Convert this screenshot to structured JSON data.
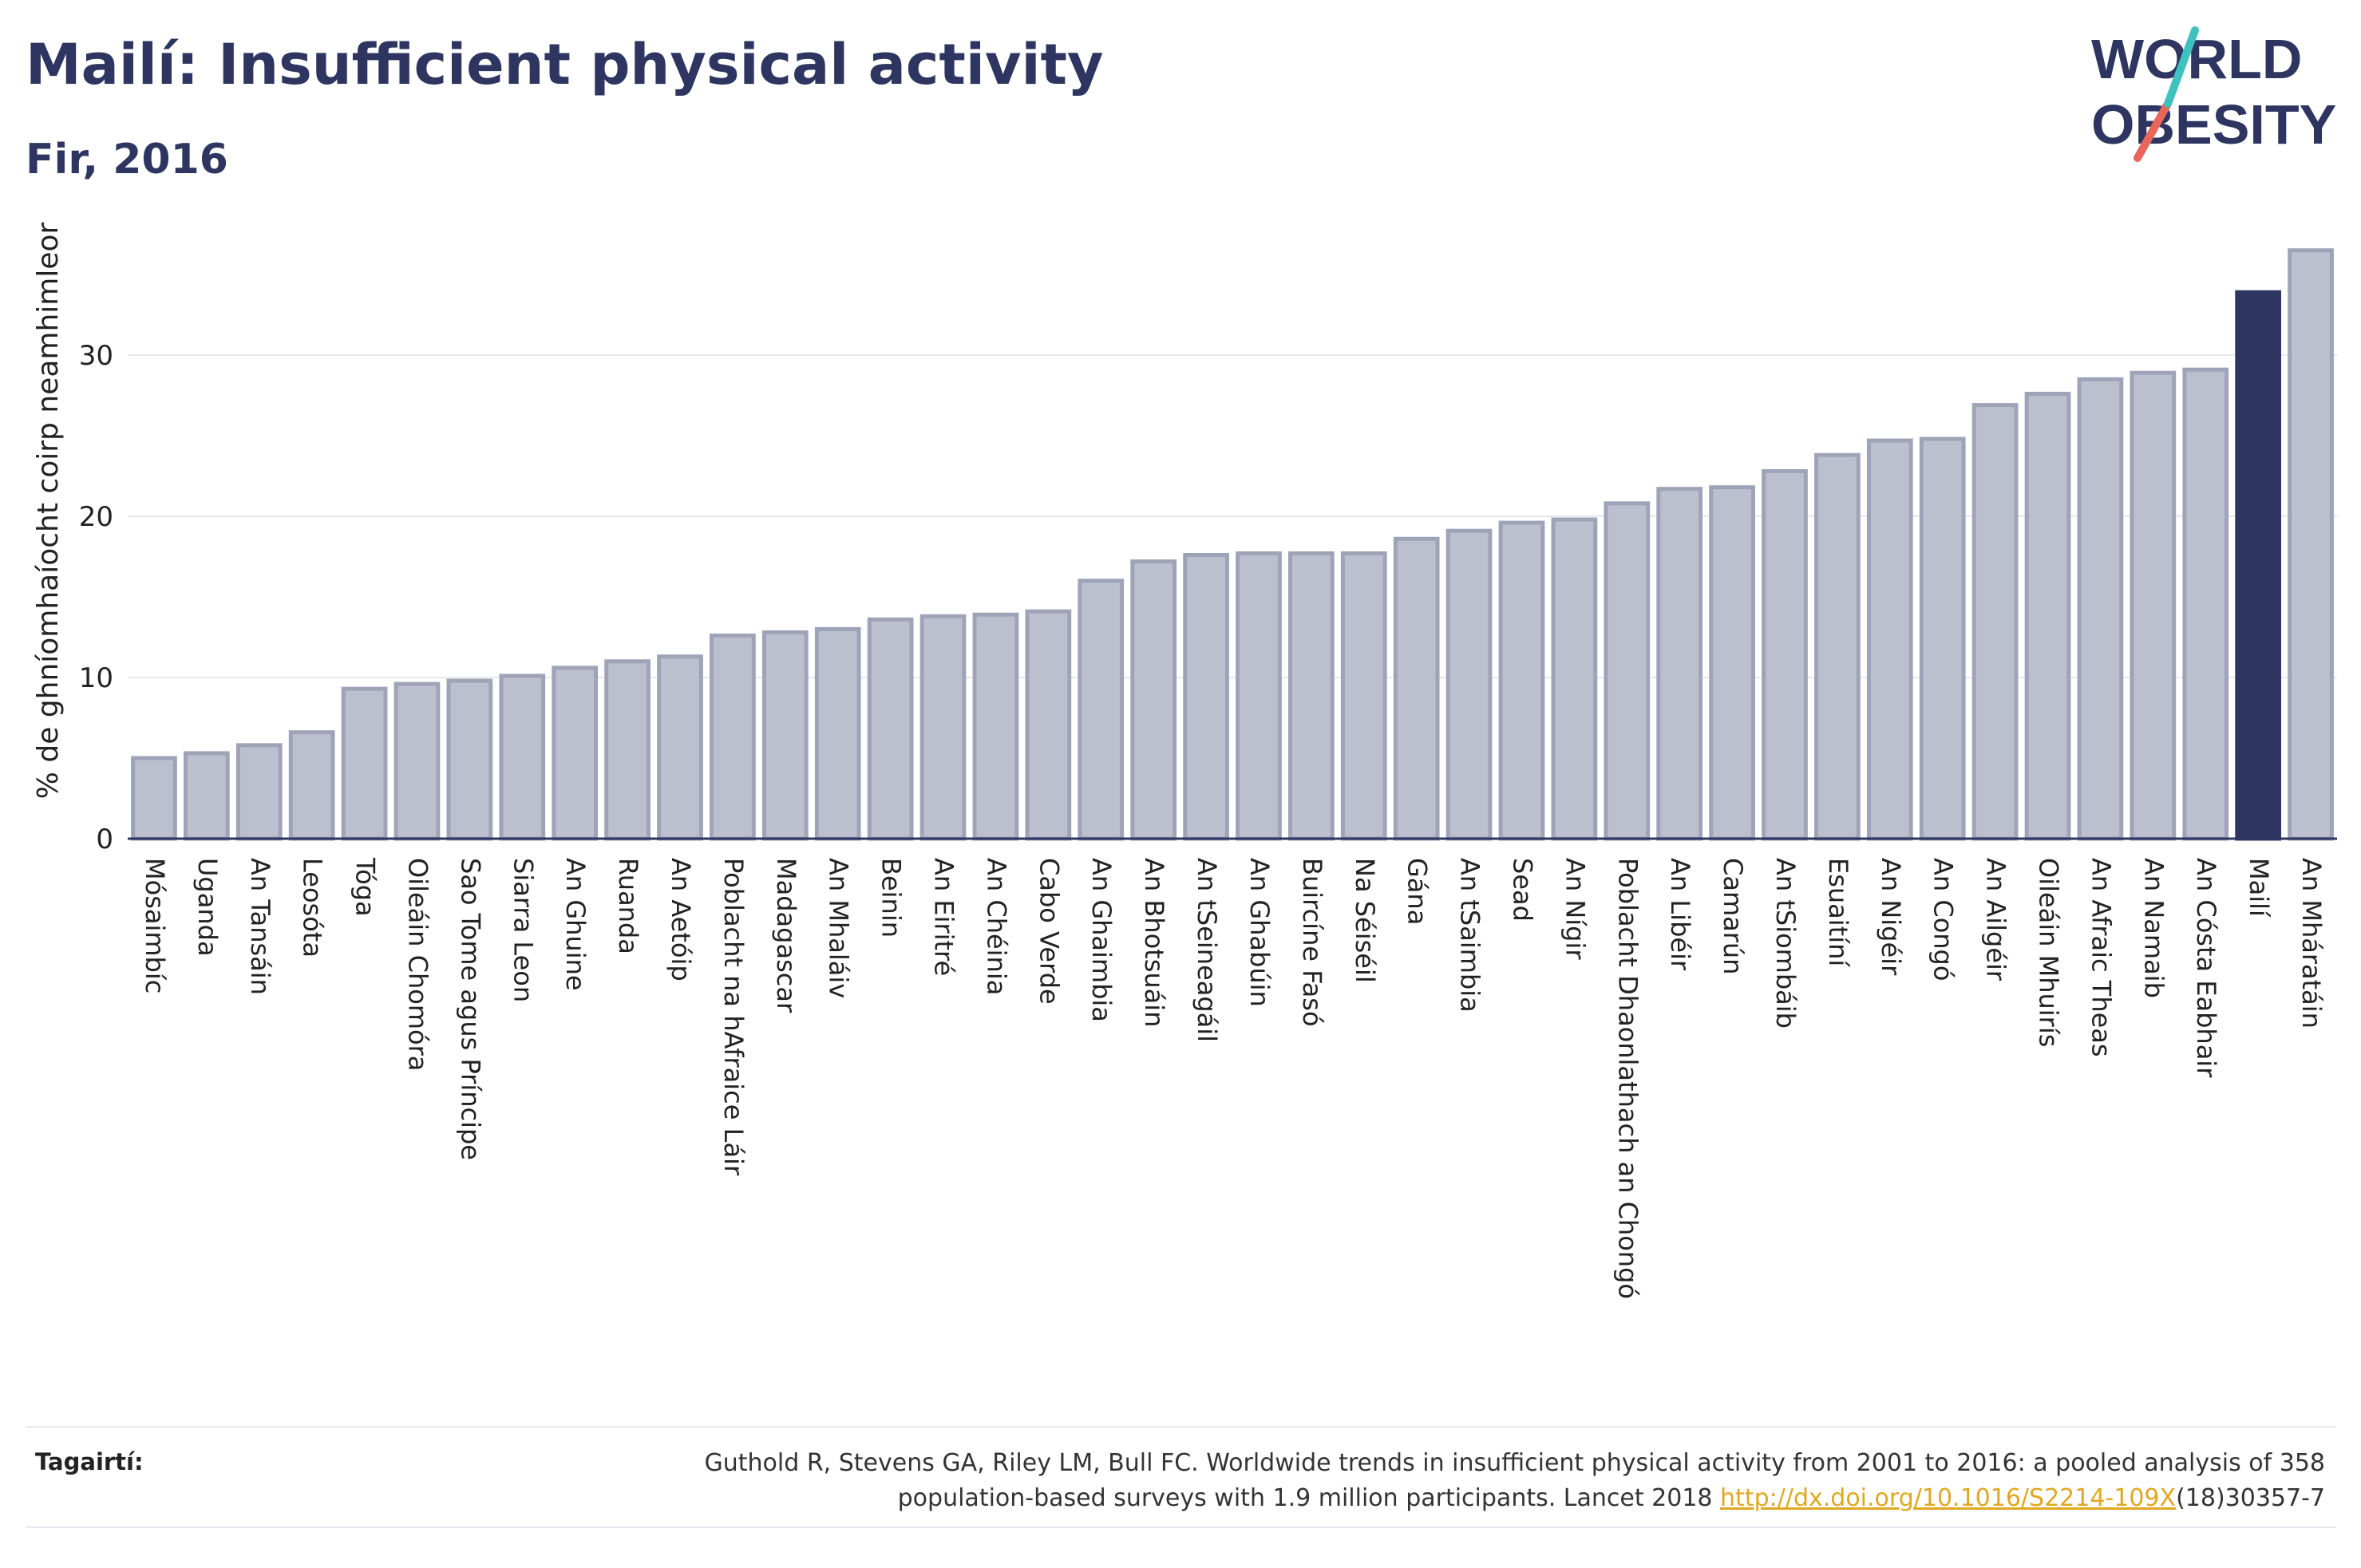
{
  "header": {
    "title": "Mailí: Insufficient physical activity",
    "subtitle": "Fir, 2016"
  },
  "logo": {
    "line1": "WORLD",
    "line2": "OBESITY",
    "colors": {
      "text": "#2d3560",
      "slash_teal": "#3fc1c0",
      "slash_red": "#e8675a"
    }
  },
  "colors": {
    "bar_default": "#bcc0ce",
    "bar_default_stroke": "#9ea3b8",
    "bar_highlight": "#2d3560",
    "grid": "#e6e8ee",
    "axis": "#2d3560"
  },
  "chart_data": {
    "type": "bar",
    "ylabel": "% de ghníomhaíocht coirp neamhimleor",
    "ylim": [
      0,
      37
    ],
    "yticks": [
      0,
      10,
      20,
      30
    ],
    "grid": true,
    "highlight": "Mailí",
    "categories": [
      "Mósaimbíc",
      "Uganda",
      "An Tansáin",
      "Leosóta",
      "Tóga",
      "Oileáin Chomóra",
      "Sao Tome agus Príncipe",
      "Siarra Leon",
      "An Ghuine",
      "Ruanda",
      "An Aetóip",
      "Poblacht na hAfraice Láir",
      "Madagascar",
      "An Mhaláiv",
      "Beinin",
      "An Eiritré",
      "An Chéinia",
      "Cabo Verde",
      "An Ghaimbia",
      "An Bhotsuáin",
      "An tSeineagáil",
      "An Ghabúin",
      "Buircíne Fasó",
      "Na Séiséil",
      "Gána",
      "An tSaimbia",
      "Sead",
      "An Nígir",
      "Poblacht Dhaonlathach an Chongó",
      "An Libéir",
      "Camarún",
      "An tSiombáib",
      "Esuaitíní",
      "An Nigéir",
      "An Congó",
      "An Ailgéir",
      "Oileáin Mhuirís",
      "An Afraic Theas",
      "An Namaib",
      "An Cósta Eabhair",
      "Mailí",
      "An Mháratáin"
    ],
    "values": [
      5.0,
      5.3,
      5.8,
      6.6,
      9.3,
      9.6,
      9.8,
      10.1,
      10.6,
      11.0,
      11.3,
      12.6,
      12.8,
      13.0,
      13.6,
      13.8,
      13.9,
      14.1,
      16.0,
      17.2,
      17.6,
      17.7,
      17.7,
      17.7,
      18.6,
      19.1,
      19.6,
      19.8,
      20.8,
      21.7,
      21.8,
      22.8,
      23.8,
      24.7,
      24.8,
      26.9,
      27.6,
      28.5,
      28.9,
      29.1,
      33.9,
      36.5
    ]
  },
  "footer": {
    "label": "Tagairtí:",
    "citation_line1": "Guthold R, Stevens GA, Riley LM, Bull FC. Worldwide trends in insufficient physical activity from 2001 to 2016: a pooled analysis of 358",
    "citation_line2": "population-based surveys with 1.9 million participants. Lancet 2018 ",
    "link_text": "http://dx.doi.org/10.1016/S2214-109X",
    "citation_end": "(18)30357-7"
  }
}
